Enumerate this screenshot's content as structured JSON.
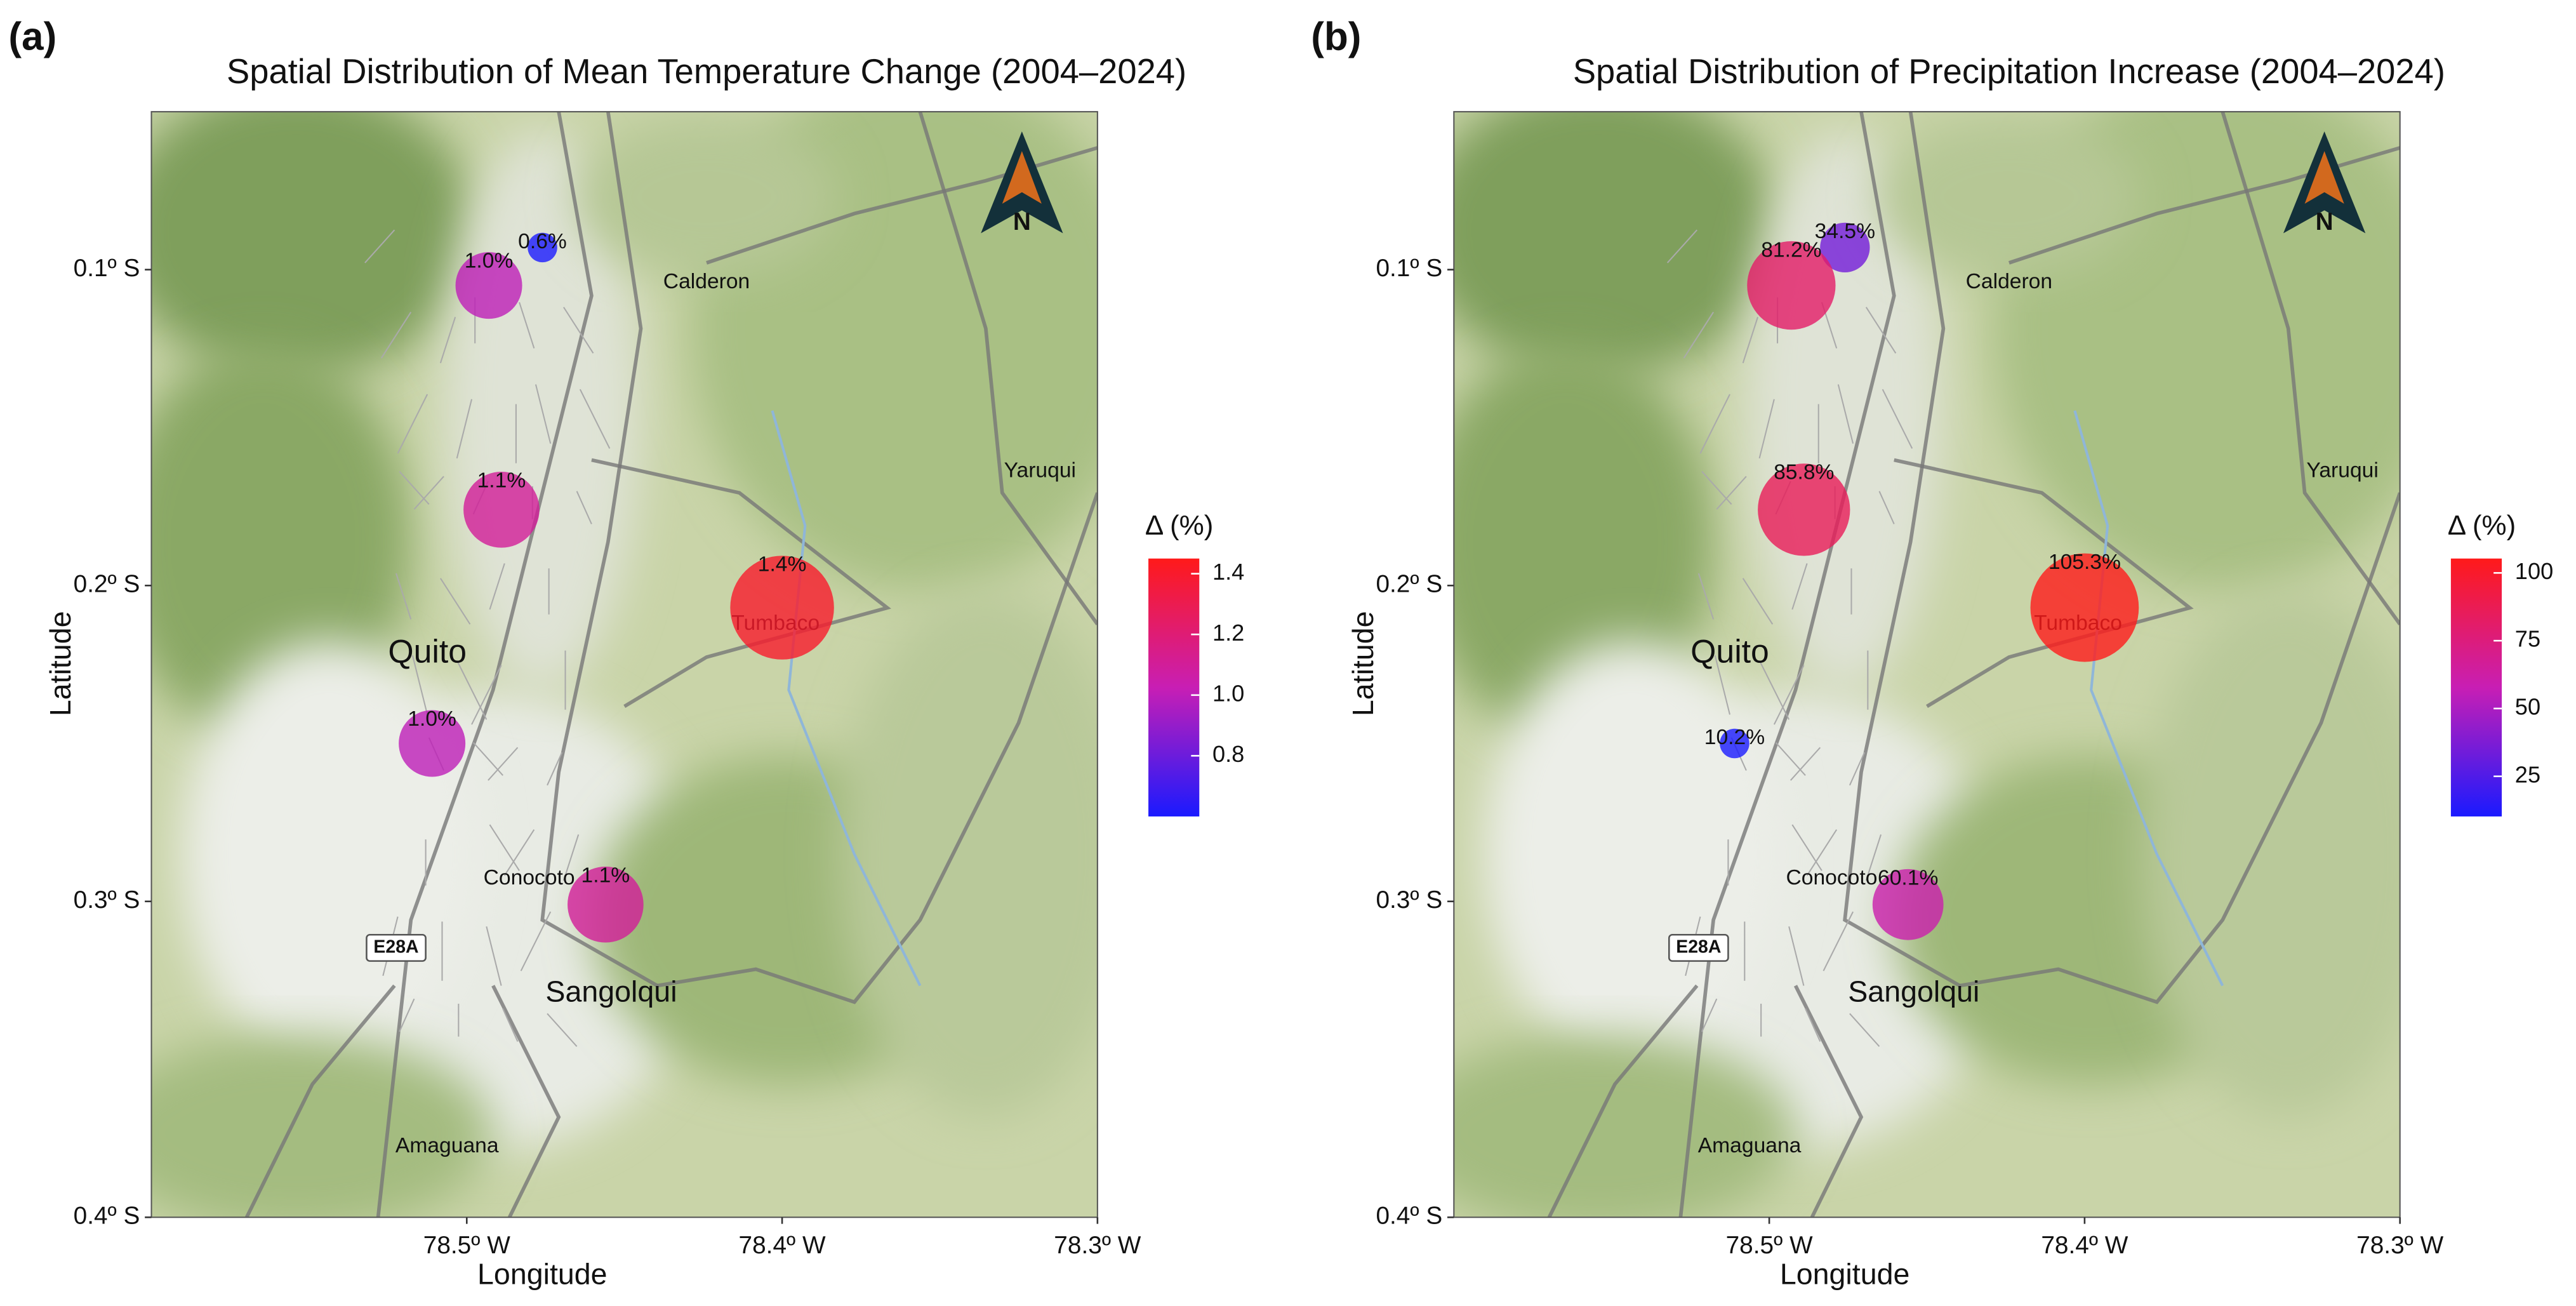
{
  "chart_data": [
    {
      "type": "scatter",
      "panel_label": "(a)",
      "title": "Spatial Distribution of Mean Temperature Change (2004–2024)",
      "x_label": "Longitude",
      "y_label": "Latitude",
      "x": [
        -78.476,
        -78.493,
        -78.489,
        -78.4,
        -78.511,
        -78.456
      ],
      "y": [
        -0.093,
        -0.105,
        -0.176,
        -0.207,
        -0.25,
        -0.301
      ],
      "values": [
        0.6,
        1.0,
        1.1,
        1.4,
        1.0,
        1.1
      ],
      "value_labels": [
        "0.6%",
        "1.0%",
        "1.1%",
        "1.4%",
        "1.0%",
        "1.1%"
      ],
      "xlim": [
        -78.6,
        -78.3
      ],
      "ylim": [
        -0.4,
        -0.05
      ],
      "xticks": [
        {
          "value": -78.5,
          "label": "78.5º W"
        },
        {
          "value": -78.4,
          "label": "78.4º W"
        },
        {
          "value": -78.3,
          "label": "78.3º W"
        }
      ],
      "yticks": [
        {
          "value": -0.1,
          "label": "0.1º S"
        },
        {
          "value": -0.2,
          "label": "0.2º S"
        },
        {
          "value": -0.3,
          "label": "0.3º S"
        },
        {
          "value": -0.4,
          "label": "0.4º S"
        }
      ],
      "colorbar_title": "Δ (%)",
      "colorbar_lim": [
        0.6,
        1.45
      ],
      "colorbar_ticks": [
        0.8,
        {
          "value": 1,
          "label": "1.0"
        },
        1.2,
        1.4
      ],
      "colors": [
        "#1a1aff",
        "#c81eb4",
        "#ff1a1a"
      ],
      "north_label": "N",
      "map_labels": [
        "Calderon",
        "Yaruqui",
        "Quito",
        "Tumbaco",
        "Conocoto",
        "Sangolqui",
        "Amaguana",
        "E28A"
      ]
    },
    {
      "type": "scatter",
      "panel_label": "(b)",
      "title": "Spatial Distribution of Precipitation Increase (2004–2024)",
      "x_label": "Longitude",
      "y_label": "Latitude",
      "x": [
        -78.476,
        -78.493,
        -78.489,
        -78.4,
        -78.511,
        -78.456
      ],
      "y": [
        -0.093,
        -0.105,
        -0.176,
        -0.207,
        -0.25,
        -0.301
      ],
      "values": [
        34.5,
        81.2,
        85.8,
        105.3,
        10.2,
        60.1
      ],
      "value_labels": [
        "34.5%",
        "81.2%",
        "85.8%",
        "105.3%",
        "10.2%",
        "60.1%"
      ],
      "xlim": [
        -78.6,
        -78.3
      ],
      "ylim": [
        -0.4,
        -0.05
      ],
      "xticks": [
        {
          "value": -78.5,
          "label": "78.5º W"
        },
        {
          "value": -78.4,
          "label": "78.4º W"
        },
        {
          "value": -78.3,
          "label": "78.3º W"
        }
      ],
      "yticks": [
        {
          "value": -0.1,
          "label": "0.1º S"
        },
        {
          "value": -0.2,
          "label": "0.2º S"
        },
        {
          "value": -0.3,
          "label": "0.3º S"
        },
        {
          "value": -0.4,
          "label": "0.4º S"
        }
      ],
      "colorbar_title": "Δ (%)",
      "colorbar_lim": [
        10.2,
        105.3
      ],
      "colorbar_ticks": [
        25,
        50,
        75,
        100
      ],
      "colors": [
        "#1a1aff",
        "#c81eb4",
        "#ff1a1a"
      ],
      "north_label": "N",
      "map_labels": [
        "Calderon",
        "Yaruqui",
        "Quito",
        "Tumbaco",
        "Conocoto",
        "Sangolqui",
        "Amaguana",
        "E28A"
      ]
    }
  ]
}
